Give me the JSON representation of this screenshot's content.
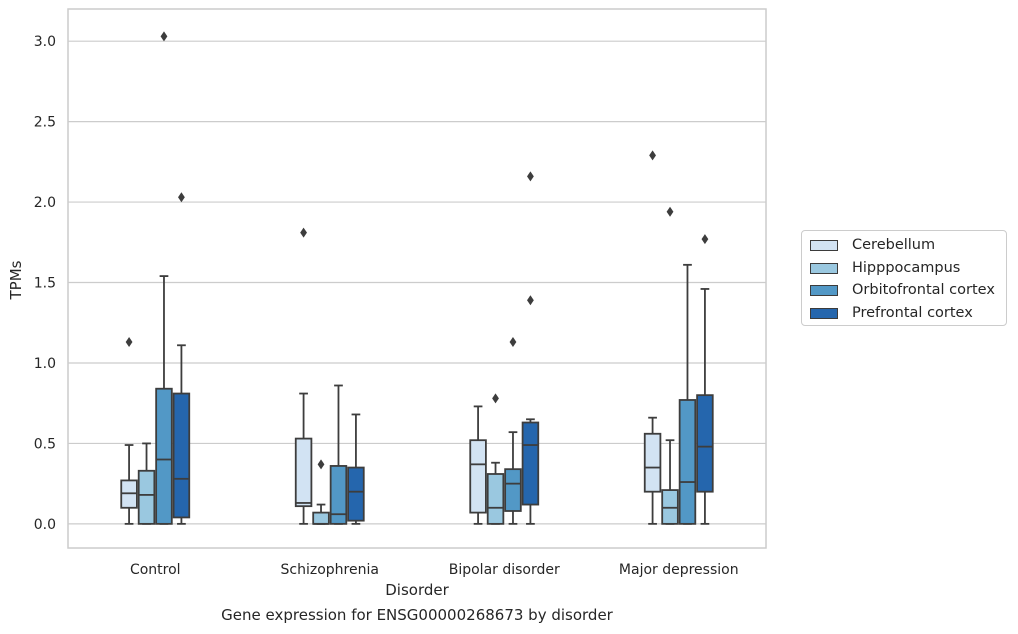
{
  "caption": "Gene expression for ENSG00000268673 by disorder",
  "colors": {
    "Cerebellum": "#d2e3f3",
    "Hipppocampus": "#9ac8e0",
    "Orbitofrontal cortex": "#5298c6",
    "Prefrontal cortex": "#2566ad",
    "outline": "#3d3d3d",
    "grid": "#cccccc"
  },
  "chart_data": {
    "type": "box",
    "xlabel": "Disorder",
    "ylabel": "TPMs",
    "ylim": [
      -0.15,
      3.2
    ],
    "yticks": [
      "0.0",
      "0.5",
      "1.0",
      "1.5",
      "2.0",
      "2.5",
      "3.0"
    ],
    "grid": true,
    "legend_position": "right",
    "categories": [
      "Control",
      "Schizophrenia",
      "Bipolar disorder",
      "Major depression"
    ],
    "series": [
      {
        "name": "Cerebellum",
        "boxes": [
          {
            "whislo": 0.0,
            "q1": 0.1,
            "med": 0.19,
            "q3": 0.27,
            "whishi": 0.49,
            "fliers": [
              1.13
            ]
          },
          {
            "whislo": 0.0,
            "q1": 0.11,
            "med": 0.13,
            "q3": 0.53,
            "whishi": 0.81,
            "fliers": [
              1.81
            ]
          },
          {
            "whislo": 0.0,
            "q1": 0.07,
            "med": 0.37,
            "q3": 0.52,
            "whishi": 0.73,
            "fliers": []
          },
          {
            "whislo": 0.0,
            "q1": 0.2,
            "med": 0.35,
            "q3": 0.56,
            "whishi": 0.66,
            "fliers": [
              2.29
            ]
          }
        ]
      },
      {
        "name": "Hipppocampus",
        "boxes": [
          {
            "whislo": 0.0,
            "q1": 0.0,
            "med": 0.18,
            "q3": 0.33,
            "whishi": 0.5,
            "fliers": []
          },
          {
            "whislo": 0.0,
            "q1": 0.0,
            "med": 0.0,
            "q3": 0.07,
            "whishi": 0.12,
            "fliers": [
              0.37
            ]
          },
          {
            "whislo": 0.0,
            "q1": 0.0,
            "med": 0.1,
            "q3": 0.31,
            "whishi": 0.38,
            "fliers": [
              0.78
            ]
          },
          {
            "whislo": 0.0,
            "q1": 0.0,
            "med": 0.1,
            "q3": 0.21,
            "whishi": 0.52,
            "fliers": [
              1.94
            ]
          }
        ]
      },
      {
        "name": "Orbitofrontal cortex",
        "boxes": [
          {
            "whislo": 0.0,
            "q1": 0.0,
            "med": 0.4,
            "q3": 0.84,
            "whishi": 1.54,
            "fliers": [
              3.03
            ]
          },
          {
            "whislo": 0.0,
            "q1": 0.0,
            "med": 0.06,
            "q3": 0.36,
            "whishi": 0.86,
            "fliers": []
          },
          {
            "whislo": 0.0,
            "q1": 0.08,
            "med": 0.25,
            "q3": 0.34,
            "whishi": 0.57,
            "fliers": [
              1.13
            ]
          },
          {
            "whislo": 0.0,
            "q1": 0.0,
            "med": 0.26,
            "q3": 0.77,
            "whishi": 1.61,
            "fliers": []
          }
        ]
      },
      {
        "name": "Prefrontal cortex",
        "boxes": [
          {
            "whislo": 0.0,
            "q1": 0.04,
            "med": 0.28,
            "q3": 0.81,
            "whishi": 1.11,
            "fliers": [
              2.03
            ]
          },
          {
            "whislo": 0.0,
            "q1": 0.02,
            "med": 0.2,
            "q3": 0.35,
            "whishi": 0.68,
            "fliers": []
          },
          {
            "whislo": 0.0,
            "q1": 0.12,
            "med": 0.49,
            "q3": 0.63,
            "whishi": 0.65,
            "fliers": [
              1.39,
              2.16
            ]
          },
          {
            "whislo": 0.0,
            "q1": 0.2,
            "med": 0.48,
            "q3": 0.8,
            "whishi": 1.46,
            "fliers": [
              1.77
            ]
          }
        ]
      }
    ]
  }
}
